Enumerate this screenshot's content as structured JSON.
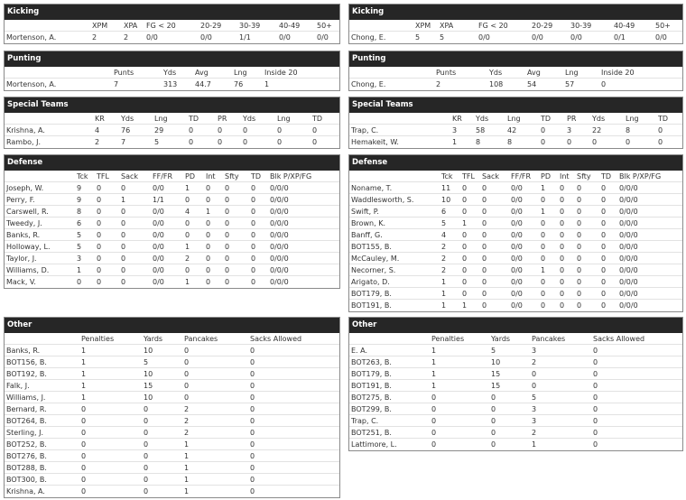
{
  "left": [
    {
      "title": "Kicking",
      "columns": [
        "XPM",
        "XPA",
        "FG < 20",
        "20-29",
        "30-39",
        "40-49",
        "50+"
      ],
      "rows": [
        [
          "Mortenson, A.",
          "2",
          "2",
          "0/0",
          "0/0",
          "1/1",
          "0/0",
          "0/0"
        ]
      ]
    },
    {
      "title": "Punting",
      "columns": [
        "Punts",
        "Yds",
        "Avg",
        "Lng",
        "Inside 20"
      ],
      "rows": [
        [
          "Mortenson, A.",
          "7",
          "313",
          "44.7",
          "76",
          "1"
        ]
      ]
    },
    {
      "title": "Special Teams",
      "columns": [
        "KR",
        "Yds",
        "Lng",
        "TD",
        "PR",
        "Yds",
        "Lng",
        "TD"
      ],
      "rows": [
        [
          "Krishna, A.",
          "4",
          "76",
          "29",
          "0",
          "0",
          "0",
          "0",
          "0"
        ],
        [
          "Rambo, J.",
          "2",
          "7",
          "5",
          "0",
          "0",
          "0",
          "0",
          "0"
        ]
      ]
    },
    {
      "title": "Defense",
      "columns": [
        "Tck",
        "TFL",
        "Sack",
        "FF/FR",
        "PD",
        "Int",
        "Sfty",
        "TD",
        "Blk P/XP/FG"
      ],
      "rows": [
        [
          "Joseph, W.",
          "9",
          "0",
          "0",
          "0/0",
          "1",
          "0",
          "0",
          "0",
          "0/0/0"
        ],
        [
          "Perry, F.",
          "9",
          "0",
          "1",
          "1/1",
          "0",
          "0",
          "0",
          "0",
          "0/0/0"
        ],
        [
          "Carswell, R.",
          "8",
          "0",
          "0",
          "0/0",
          "4",
          "1",
          "0",
          "0",
          "0/0/0"
        ],
        [
          "Tweedy, J.",
          "6",
          "0",
          "0",
          "0/0",
          "0",
          "0",
          "0",
          "0",
          "0/0/0"
        ],
        [
          "Banks, R.",
          "5",
          "0",
          "0",
          "0/0",
          "0",
          "0",
          "0",
          "0",
          "0/0/0"
        ],
        [
          "Holloway, L.",
          "5",
          "0",
          "0",
          "0/0",
          "1",
          "0",
          "0",
          "0",
          "0/0/0"
        ],
        [
          "Taylor, J.",
          "3",
          "0",
          "0",
          "0/0",
          "2",
          "0",
          "0",
          "0",
          "0/0/0"
        ],
        [
          "Williams, D.",
          "1",
          "0",
          "0",
          "0/0",
          "0",
          "0",
          "0",
          "0",
          "0/0/0"
        ],
        [
          "Mack, V.",
          "0",
          "0",
          "0",
          "0/0",
          "1",
          "0",
          "0",
          "0",
          "0/0/0"
        ]
      ]
    },
    {
      "title": "Other",
      "columns": [
        "Penalties",
        "Yards",
        "Pancakes",
        "Sacks Allowed"
      ],
      "rows": [
        [
          "Banks, R.",
          "1",
          "10",
          "0",
          "0"
        ],
        [
          "BOT156, B.",
          "1",
          "5",
          "0",
          "0"
        ],
        [
          "BOT192, B.",
          "1",
          "10",
          "0",
          "0"
        ],
        [
          "Falk, J.",
          "1",
          "15",
          "0",
          "0"
        ],
        [
          "Williams, J.",
          "1",
          "10",
          "0",
          "0"
        ],
        [
          "Bernard, R.",
          "0",
          "0",
          "2",
          "0"
        ],
        [
          "BOT264, B.",
          "0",
          "0",
          "2",
          "0"
        ],
        [
          "Sterling, J.",
          "0",
          "0",
          "2",
          "0"
        ],
        [
          "BOT252, B.",
          "0",
          "0",
          "1",
          "0"
        ],
        [
          "BOT276, B.",
          "0",
          "0",
          "1",
          "0"
        ],
        [
          "BOT288, B.",
          "0",
          "0",
          "1",
          "0"
        ],
        [
          "BOT300, B.",
          "0",
          "0",
          "1",
          "0"
        ],
        [
          "Krishna, A.",
          "0",
          "0",
          "1",
          "0"
        ]
      ]
    }
  ],
  "right": [
    {
      "title": "Kicking",
      "columns": [
        "XPM",
        "XPA",
        "FG < 20",
        "20-29",
        "30-39",
        "40-49",
        "50+"
      ],
      "rows": [
        [
          "Chong, E.",
          "5",
          "5",
          "0/0",
          "0/0",
          "0/0",
          "0/1",
          "0/0"
        ]
      ]
    },
    {
      "title": "Punting",
      "columns": [
        "Punts",
        "Yds",
        "Avg",
        "Lng",
        "Inside 20"
      ],
      "rows": [
        [
          "Chong, E.",
          "2",
          "108",
          "54",
          "57",
          "0"
        ]
      ]
    },
    {
      "title": "Special Teams",
      "columns": [
        "KR",
        "Yds",
        "Lng",
        "TD",
        "PR",
        "Yds",
        "Lng",
        "TD"
      ],
      "rows": [
        [
          "Trap, C.",
          "3",
          "58",
          "42",
          "0",
          "3",
          "22",
          "8",
          "0"
        ],
        [
          "Hemakeit, W.",
          "1",
          "8",
          "8",
          "0",
          "0",
          "0",
          "0",
          "0"
        ]
      ]
    },
    {
      "title": "Defense",
      "columns": [
        "Tck",
        "TFL",
        "Sack",
        "FF/FR",
        "PD",
        "Int",
        "Sfty",
        "TD",
        "Blk P/XP/FG"
      ],
      "rows": [
        [
          "Noname, T.",
          "11",
          "0",
          "0",
          "0/0",
          "1",
          "0",
          "0",
          "0",
          "0/0/0"
        ],
        [
          "Waddlesworth, S.",
          "10",
          "0",
          "0",
          "0/0",
          "0",
          "0",
          "0",
          "0",
          "0/0/0"
        ],
        [
          "Swift, P.",
          "6",
          "0",
          "0",
          "0/0",
          "1",
          "0",
          "0",
          "0",
          "0/0/0"
        ],
        [
          "Brown, K.",
          "5",
          "1",
          "0",
          "0/0",
          "0",
          "0",
          "0",
          "0",
          "0/0/0"
        ],
        [
          "Banff, G.",
          "4",
          "0",
          "0",
          "0/0",
          "0",
          "0",
          "0",
          "0",
          "0/0/0"
        ],
        [
          "BOT155, B.",
          "2",
          "0",
          "0",
          "0/0",
          "0",
          "0",
          "0",
          "0",
          "0/0/0"
        ],
        [
          "McCauley, M.",
          "2",
          "0",
          "0",
          "0/0",
          "0",
          "0",
          "0",
          "0",
          "0/0/0"
        ],
        [
          "Necorner, S.",
          "2",
          "0",
          "0",
          "0/0",
          "1",
          "0",
          "0",
          "0",
          "0/0/0"
        ],
        [
          "Arigato, D.",
          "1",
          "0",
          "0",
          "0/0",
          "0",
          "0",
          "0",
          "0",
          "0/0/0"
        ],
        [
          "BOT179, B.",
          "1",
          "0",
          "0",
          "0/0",
          "0",
          "0",
          "0",
          "0",
          "0/0/0"
        ],
        [
          "BOT191, B.",
          "1",
          "1",
          "0",
          "0/0",
          "0",
          "0",
          "0",
          "0",
          "0/0/0"
        ]
      ]
    },
    {
      "title": "Other",
      "columns": [
        "Penalties",
        "Yards",
        "Pancakes",
        "Sacks Allowed"
      ],
      "rows": [
        [
          "E. A.",
          "1",
          "5",
          "3",
          "0"
        ],
        [
          "BOT263, B.",
          "1",
          "10",
          "2",
          "0"
        ],
        [
          "BOT179, B.",
          "1",
          "15",
          "0",
          "0"
        ],
        [
          "BOT191, B.",
          "1",
          "15",
          "0",
          "0"
        ],
        [
          "BOT275, B.",
          "0",
          "0",
          "5",
          "0"
        ],
        [
          "BOT299, B.",
          "0",
          "0",
          "3",
          "0"
        ],
        [
          "Trap, C.",
          "0",
          "0",
          "3",
          "0"
        ],
        [
          "BOT251, B.",
          "0",
          "0",
          "2",
          "0"
        ],
        [
          "Lattimore, L.",
          "0",
          "0",
          "1",
          "0"
        ]
      ]
    }
  ]
}
